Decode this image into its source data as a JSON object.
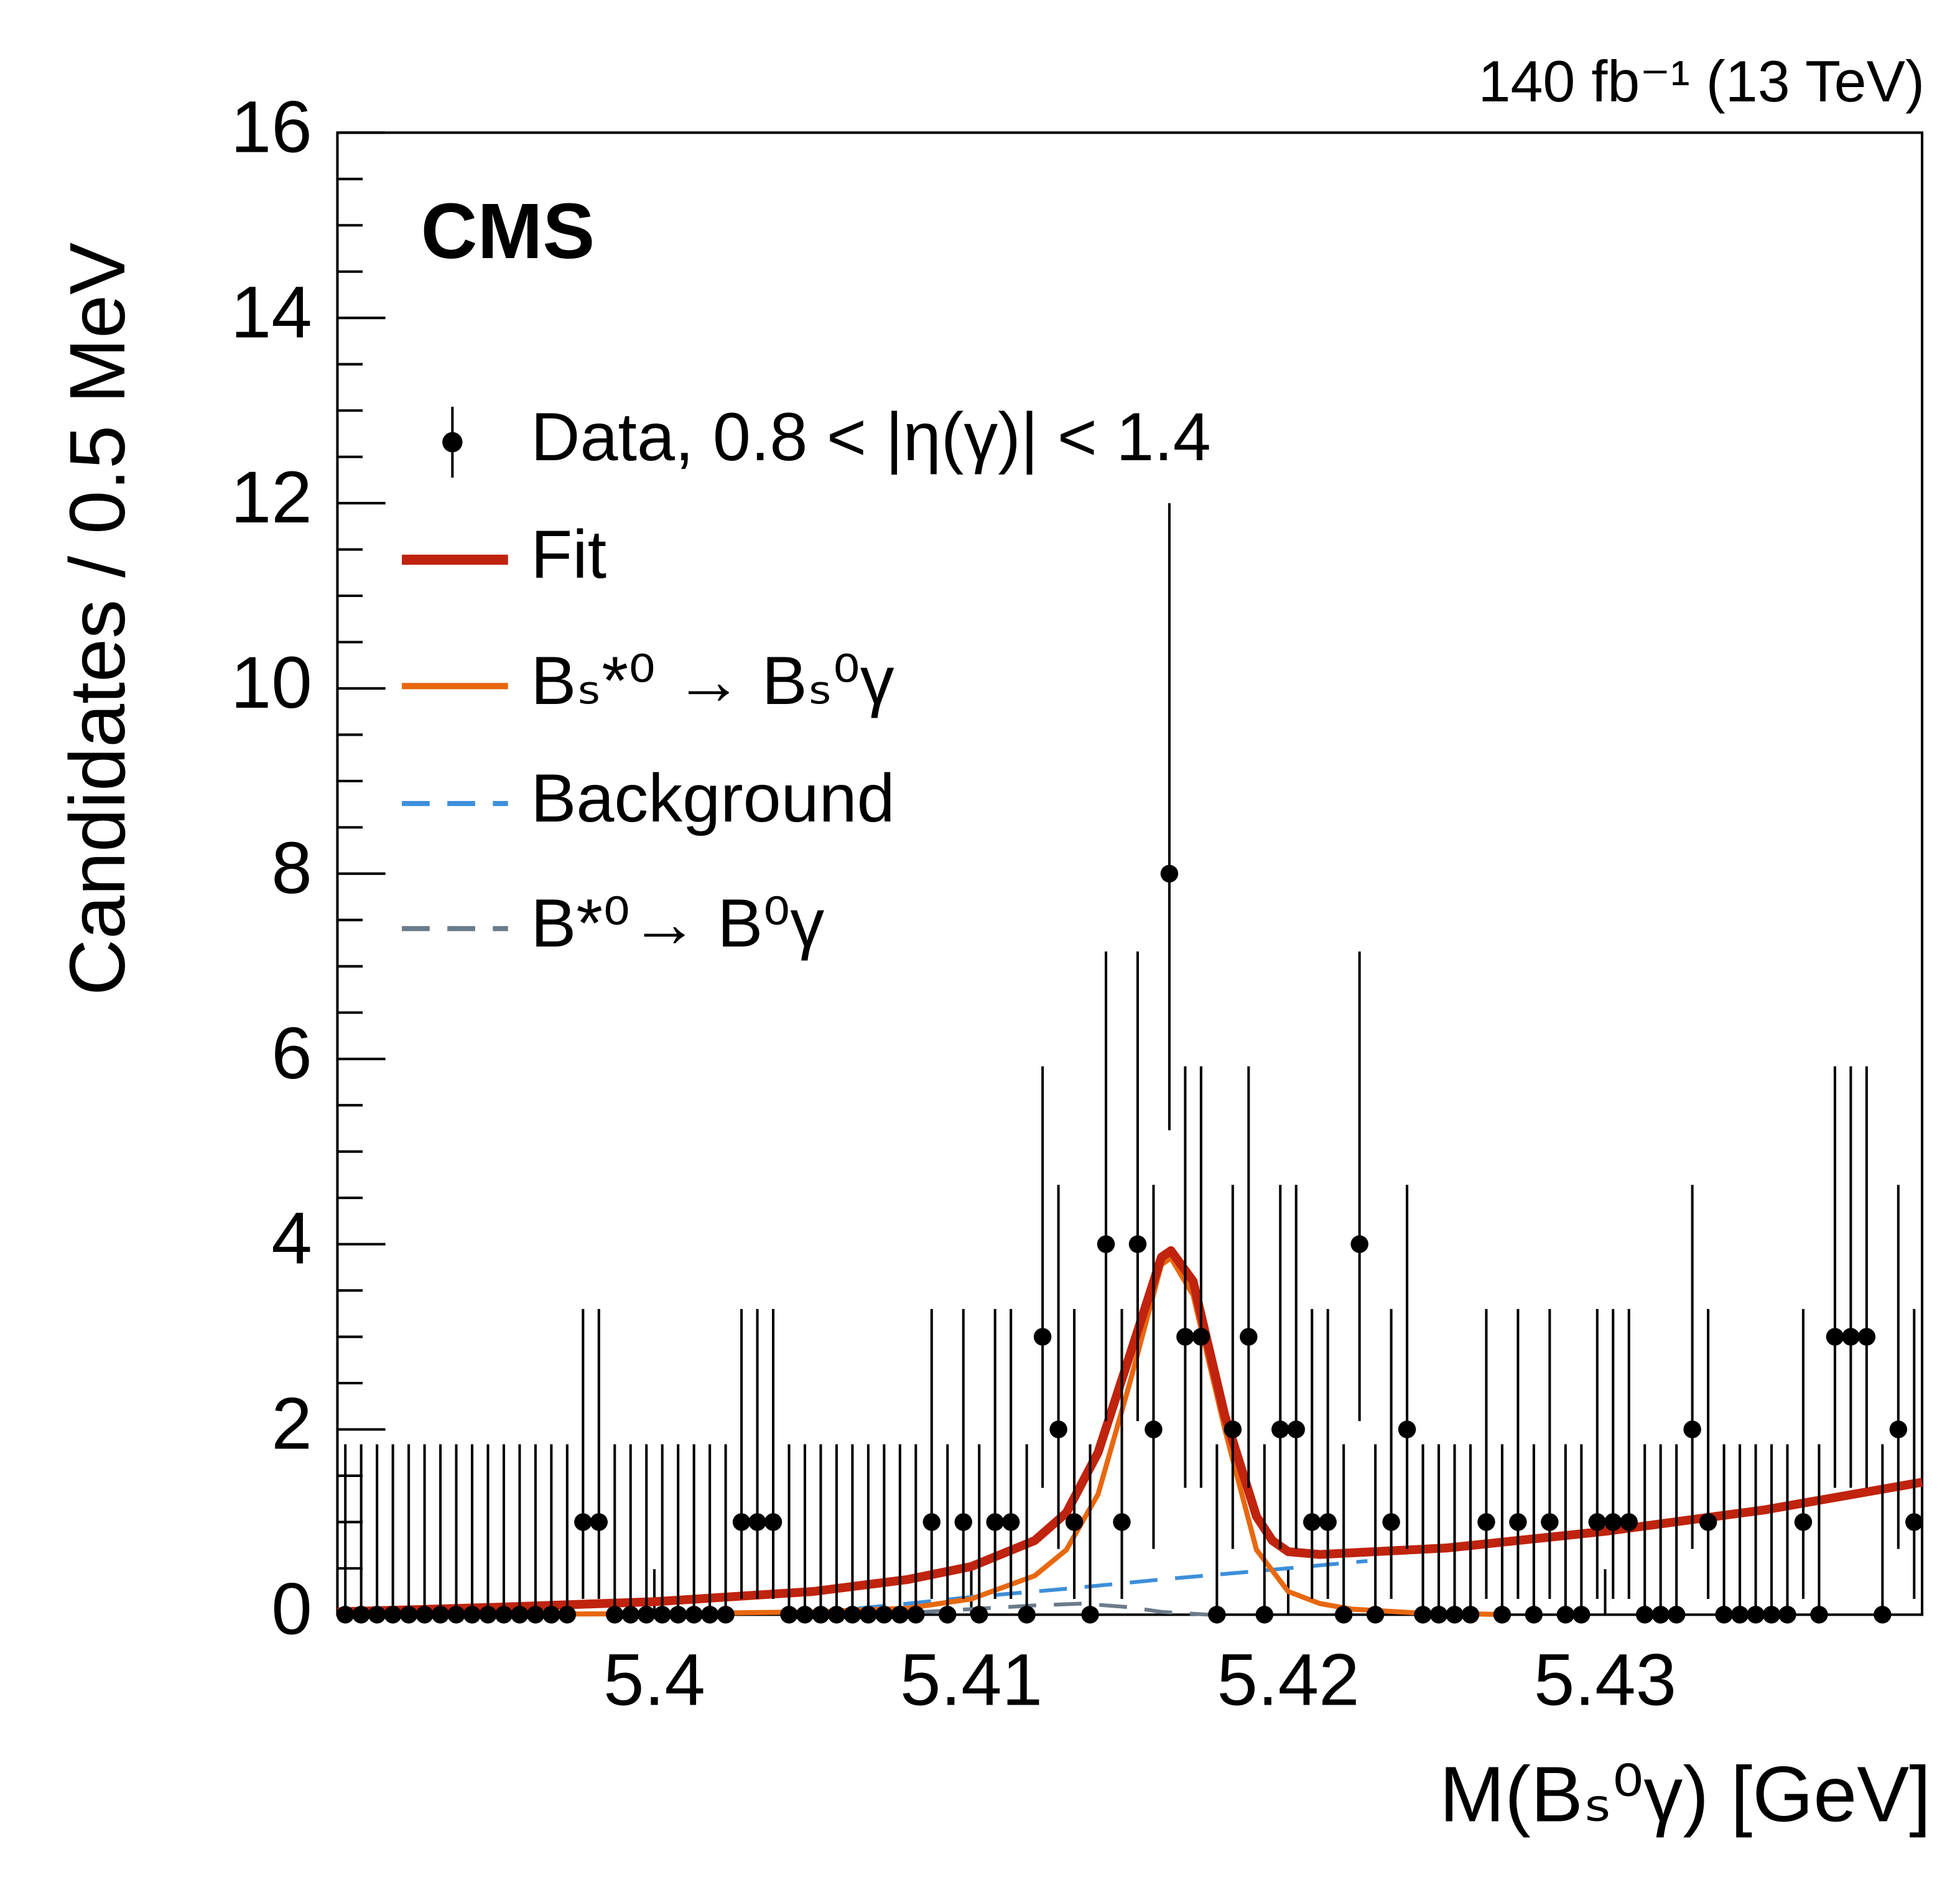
{
  "chart_data": {
    "type": "errorbar",
    "lumi_label": "140 fb⁻¹ (13 TeV)",
    "experiment_label": "CMS",
    "xlabel": "M(Bₛ⁰γ) [GeV]",
    "ylabel": "Candidates / 0.5 MeV",
    "xlim": [
      5.39,
      5.44
    ],
    "ylim": [
      0,
      16
    ],
    "xticks": [
      5.4,
      5.41,
      5.42,
      5.43
    ],
    "yticks": [
      0,
      2,
      4,
      6,
      8,
      10,
      12,
      14,
      16
    ],
    "yminorticks": [
      0.5,
      1,
      1.5,
      2.5,
      3,
      3.5,
      4.5,
      5,
      5.5,
      6.5,
      7,
      7.5,
      8.5,
      9,
      9.5,
      10.5,
      11,
      11.5,
      12.5,
      13,
      13.5,
      14.5,
      15,
      15.5
    ],
    "legend": "upper left",
    "series": [
      {
        "name": "Data, 0.8 < |η(γ)| < 1.4",
        "kind": "points",
        "color": "#000000",
        "x": [
          5.39025,
          5.39075,
          5.39125,
          5.39175,
          5.39225,
          5.39275,
          5.39325,
          5.39375,
          5.39425,
          5.39475,
          5.39525,
          5.39575,
          5.39625,
          5.39675,
          5.39725,
          5.39775,
          5.39825,
          5.39875,
          5.39925,
          5.39975,
          5.40025,
          5.40075,
          5.40125,
          5.40175,
          5.40225,
          5.40275,
          5.40325,
          5.40375,
          5.40425,
          5.40475,
          5.40525,
          5.40575,
          5.40625,
          5.40675,
          5.40725,
          5.40775,
          5.40825,
          5.40875,
          5.40925,
          5.40975,
          5.41025,
          5.41075,
          5.41125,
          5.41175,
          5.41225,
          5.41275,
          5.41325,
          5.41375,
          5.41425,
          5.41475,
          5.41525,
          5.41575,
          5.41625,
          5.41675,
          5.41725,
          5.41775,
          5.41825,
          5.41875,
          5.41925,
          5.41975,
          5.42025,
          5.42075,
          5.42125,
          5.42175,
          5.42225,
          5.42275,
          5.42325,
          5.42375,
          5.42425,
          5.42475,
          5.42525,
          5.42575,
          5.42625,
          5.42675,
          5.42725,
          5.42775,
          5.42825,
          5.42875,
          5.42925,
          5.42975,
          5.43025,
          5.43075,
          5.43125,
          5.43175,
          5.43225,
          5.43275,
          5.43325,
          5.43375,
          5.43425,
          5.43475,
          5.43525,
          5.43575,
          5.43625,
          5.43675,
          5.43725,
          5.43775,
          5.43825,
          5.43875,
          5.43925,
          5.43975
        ],
        "values": [
          0,
          0,
          0,
          0,
          0,
          0,
          0,
          0,
          0,
          0,
          0,
          0,
          0,
          0,
          0,
          1,
          1,
          0,
          0,
          0,
          0,
          0,
          0,
          0,
          0,
          1,
          1,
          1,
          0,
          0,
          0,
          0,
          0,
          0,
          0,
          0,
          0,
          1,
          0,
          1,
          0,
          1,
          1,
          0,
          3,
          2,
          1,
          0,
          4,
          1,
          4,
          2,
          8,
          3,
          3,
          0,
          2,
          3,
          0,
          2,
          2,
          1,
          1,
          0,
          4,
          0,
          1,
          2,
          0,
          0,
          0,
          0,
          1,
          0,
          1,
          0,
          1,
          0,
          0,
          1,
          1,
          1,
          0,
          0,
          0,
          2,
          1,
          0,
          0,
          0,
          0,
          0,
          1,
          0,
          3,
          3,
          3,
          0,
          2,
          1
        ],
        "errors_low": [
          0,
          0,
          0,
          0,
          0,
          0,
          0,
          0,
          0,
          0,
          0,
          0,
          0,
          0,
          0,
          0.83,
          0.83,
          0,
          0,
          0,
          0,
          0,
          0,
          0,
          0,
          0.83,
          0.83,
          0.83,
          0,
          0,
          0,
          0,
          0,
          0,
          0,
          0,
          0,
          0.83,
          0,
          0.83,
          0,
          0.83,
          0.83,
          0,
          1.63,
          1.29,
          0.83,
          0,
          1.91,
          0.83,
          1.91,
          1.29,
          2.77,
          1.63,
          1.63,
          0,
          1.29,
          1.63,
          0,
          1.29,
          1.29,
          0.83,
          0.83,
          0,
          1.91,
          0,
          0.83,
          1.29,
          0,
          0,
          0,
          0,
          0.83,
          0,
          0.83,
          0,
          0.83,
          0,
          0,
          0.83,
          0.83,
          0.83,
          0,
          0,
          0,
          1.29,
          0.83,
          0,
          0,
          0,
          0,
          0,
          0.83,
          0,
          1.63,
          1.63,
          1.63,
          0,
          1.29,
          0.83
        ],
        "errors_high": [
          1.84,
          1.84,
          1.84,
          1.84,
          1.84,
          1.84,
          1.84,
          1.84,
          1.84,
          1.84,
          1.84,
          1.84,
          1.84,
          1.84,
          1.84,
          2.3,
          2.3,
          1.84,
          1.84,
          1.84,
          1.84,
          1.84,
          1.84,
          1.84,
          1.84,
          2.3,
          2.3,
          2.3,
          1.84,
          1.84,
          1.84,
          1.84,
          1.84,
          1.84,
          1.84,
          1.84,
          1.84,
          2.3,
          1.84,
          2.3,
          1.84,
          2.3,
          2.3,
          1.84,
          2.92,
          2.64,
          2.3,
          1.84,
          3.16,
          2.3,
          3.16,
          2.64,
          4,
          2.92,
          2.92,
          1.84,
          2.64,
          2.92,
          1.84,
          2.64,
          2.64,
          2.3,
          2.3,
          1.84,
          3.16,
          1.84,
          2.3,
          2.64,
          1.84,
          1.84,
          1.84,
          1.84,
          2.3,
          1.84,
          2.3,
          1.84,
          2.3,
          1.84,
          1.84,
          2.3,
          2.3,
          2.3,
          1.84,
          1.84,
          1.84,
          2.64,
          2.3,
          1.84,
          1.84,
          1.84,
          1.84,
          1.84,
          2.3,
          1.84,
          2.92,
          2.92,
          2.92,
          1.84,
          2.64,
          2.3
        ]
      },
      {
        "name": "Fit",
        "kind": "line",
        "color": "#c0230e",
        "dashed": false,
        "width": 7,
        "x": [
          5.39,
          5.395,
          5.4,
          5.405,
          5.408,
          5.41,
          5.412,
          5.413,
          5.414,
          5.415,
          5.416,
          5.4163,
          5.417,
          5.418,
          5.419,
          5.4195,
          5.42,
          5.421,
          5.425,
          5.43,
          5.435,
          5.44
        ],
        "values": [
          0.03,
          0.08,
          0.14,
          0.25,
          0.38,
          0.52,
          0.8,
          1.1,
          1.75,
          2.8,
          3.86,
          3.93,
          3.6,
          2.15,
          1.06,
          0.8,
          0.68,
          0.65,
          0.72,
          0.9,
          1.13,
          1.43
        ]
      },
      {
        "name": "Bₛ*⁰ → Bₛ⁰γ",
        "kind": "line",
        "color": "#e8680f",
        "dashed": false,
        "width": 4,
        "x": [
          5.39,
          5.4,
          5.405,
          5.408,
          5.41,
          5.412,
          5.413,
          5.414,
          5.415,
          5.416,
          5.4163,
          5.417,
          5.418,
          5.419,
          5.42,
          5.421,
          5.422,
          5.424,
          5.427
        ],
        "values": [
          0,
          0.01,
          0.03,
          0.07,
          0.17,
          0.42,
          0.7,
          1.3,
          2.5,
          3.78,
          3.85,
          3.45,
          2.0,
          0.7,
          0.25,
          0.12,
          0.06,
          0.02,
          0
        ]
      },
      {
        "name": "Background",
        "kind": "line",
        "color": "#3d8fd9",
        "dashed": true,
        "width": 3,
        "x": [
          5.405,
          5.408,
          5.41,
          5.413,
          5.416,
          5.419,
          5.4225
        ],
        "values": [
          0.02,
          0.12,
          0.19,
          0.28,
          0.38,
          0.47,
          0.58
        ]
      },
      {
        "name": "B*⁰→ B⁰γ",
        "kind": "line",
        "color": "#6b7b8a",
        "dashed": true,
        "width": 3,
        "x": [
          5.404,
          5.408,
          5.41,
          5.412,
          5.4135,
          5.415,
          5.416,
          5.4175
        ],
        "values": [
          0,
          0.02,
          0.06,
          0.1,
          0.12,
          0.08,
          0.03,
          0
        ]
      }
    ]
  }
}
